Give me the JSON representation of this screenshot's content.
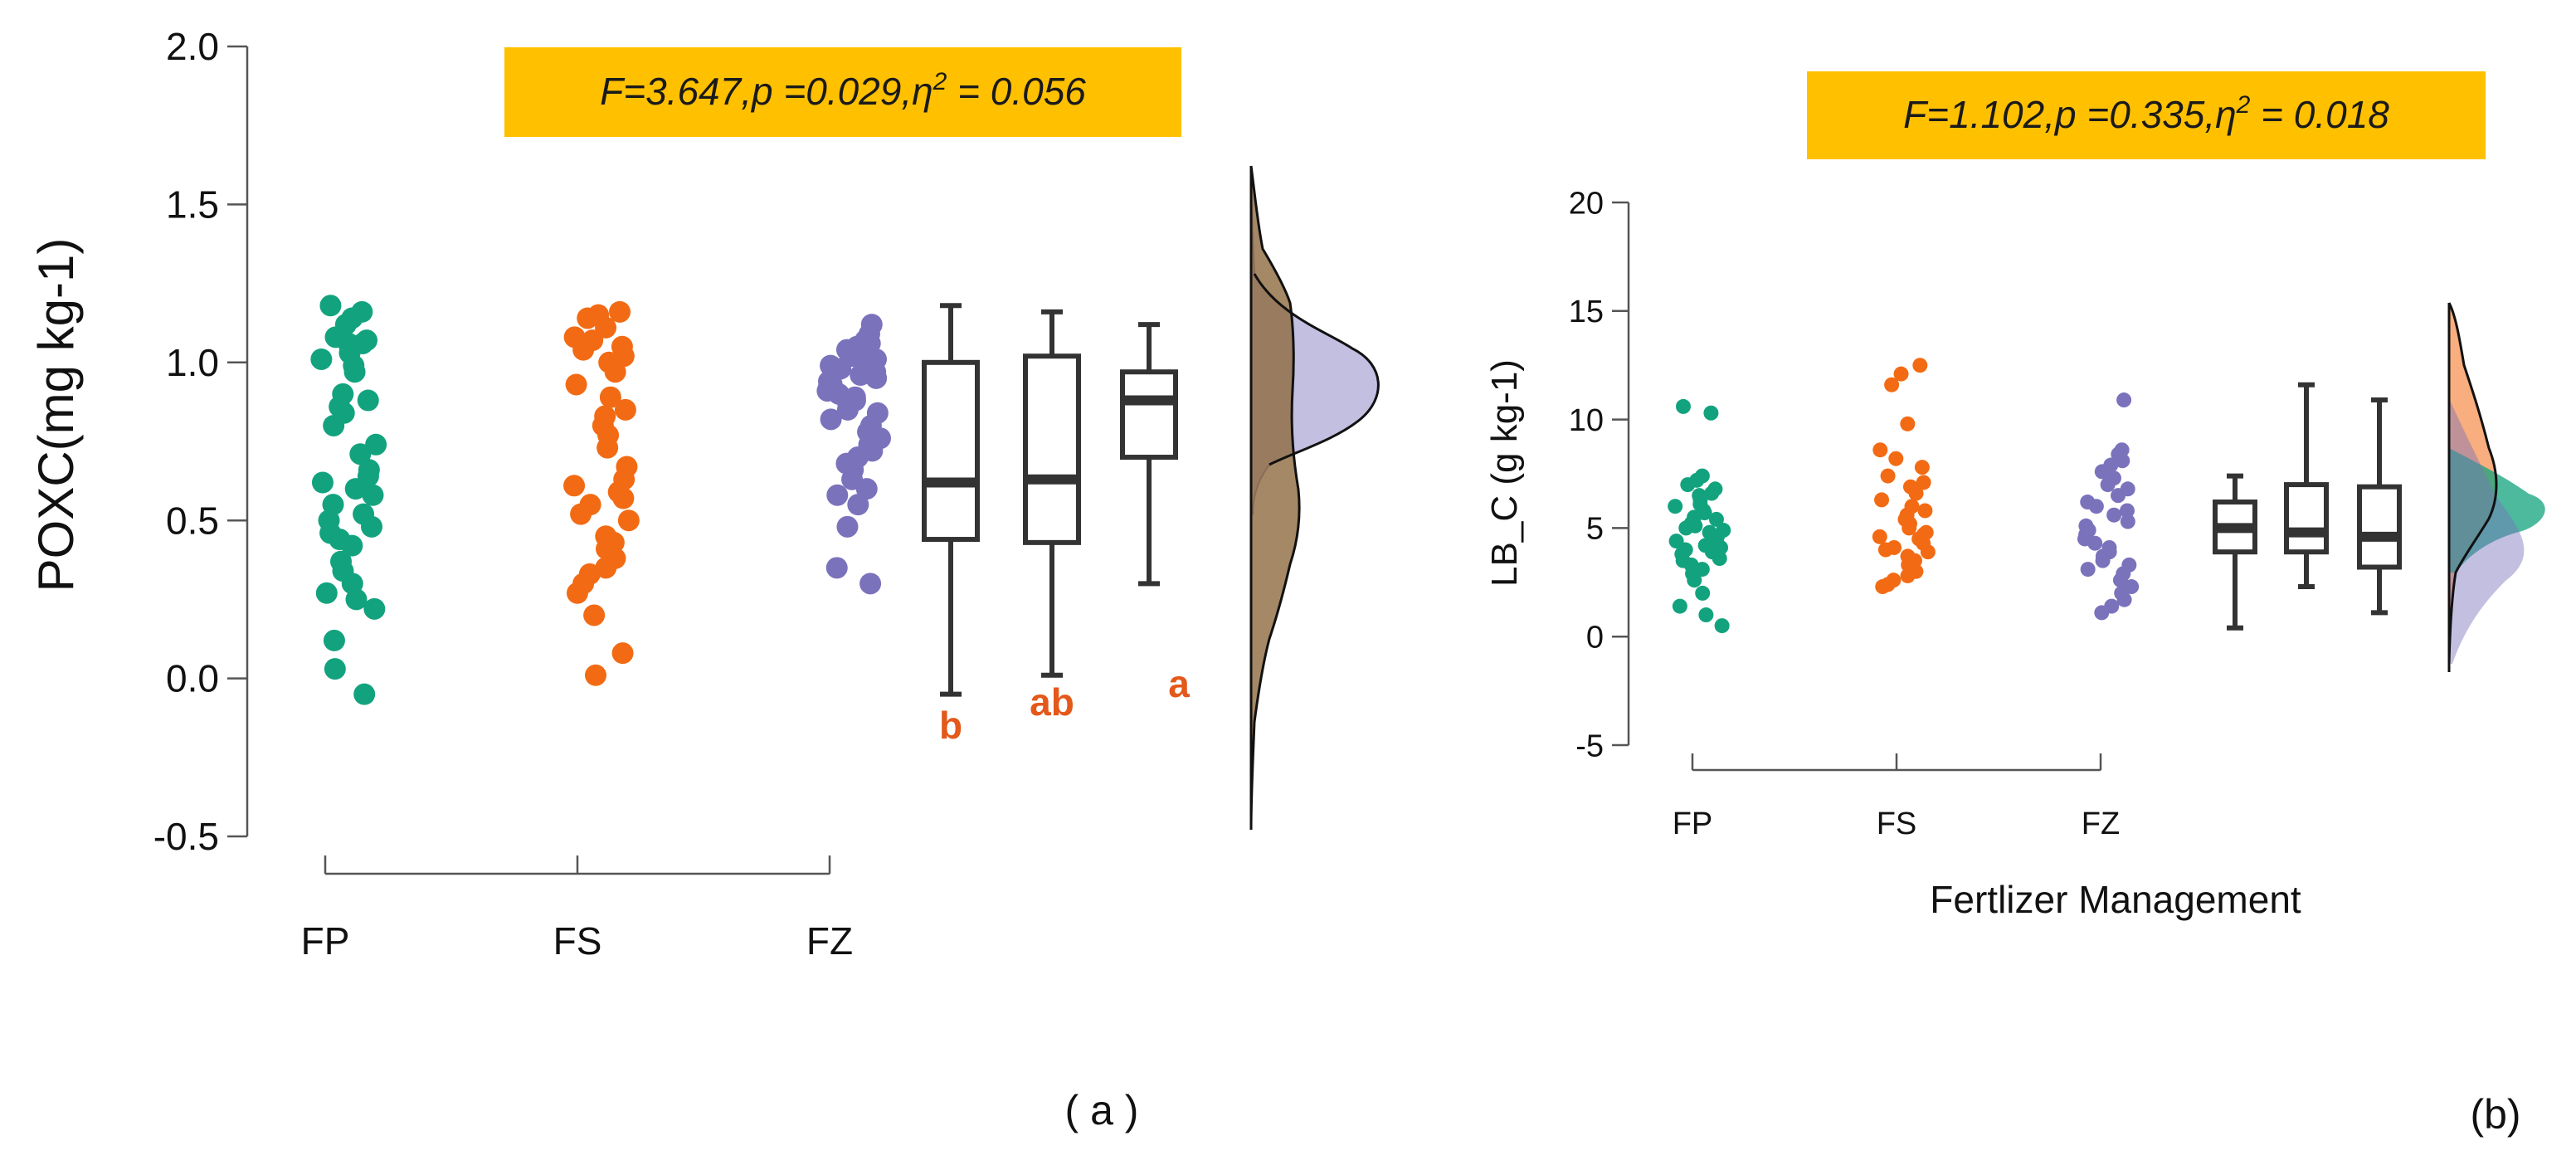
{
  "colors": {
    "FP": "#12A37E",
    "FS": "#F26B14",
    "FZ": "#7B72BC",
    "stat_bg": "#FFC000",
    "letters": "#E4581A"
  },
  "chart_data": [
    {
      "panel_label": "( a )",
      "type": "raincloud",
      "ylabel": "POXC(mg kg-1)",
      "xlabel": "",
      "ylim": [
        -0.5,
        2.0
      ],
      "yticks": [
        -0.5,
        0.0,
        0.5,
        1.0,
        1.5,
        2.0
      ],
      "ytick_labels": [
        "-0.5",
        "0.0",
        "0.5",
        "1.0",
        "1.5",
        "2.0"
      ],
      "categories": [
        "FP",
        "FS",
        "FZ"
      ],
      "stat_text": "F=3.647,p =0.029,η² = 0.056",
      "stat_parts": {
        "main": "F=3.647,p =0.029,η",
        "sup": "2",
        "tail": " = 0.056"
      },
      "series": [
        {
          "name": "FP",
          "box": {
            "min": -0.05,
            "q1": 0.44,
            "median": 0.62,
            "q3": 1.0,
            "max": 1.18
          },
          "letter": "b",
          "points": [
            1.18,
            1.16,
            1.14,
            1.12,
            1.08,
            1.07,
            1.06,
            1.06,
            1.05,
            1.03,
            1.01,
            0.99,
            0.97,
            0.9,
            0.88,
            0.86,
            0.84,
            0.8,
            0.74,
            0.71,
            0.66,
            0.64,
            0.62,
            0.6,
            0.58,
            0.55,
            0.52,
            0.5,
            0.48,
            0.46,
            0.44,
            0.42,
            0.37,
            0.34,
            0.3,
            0.27,
            0.25,
            0.22,
            0.12,
            0.03,
            -0.05
          ]
        },
        {
          "name": "FS",
          "box": {
            "min": 0.01,
            "q1": 0.43,
            "median": 0.63,
            "q3": 1.02,
            "max": 1.16
          },
          "letter": "ab",
          "points": [
            1.16,
            1.15,
            1.14,
            1.11,
            1.08,
            1.07,
            1.05,
            1.04,
            1.02,
            1.0,
            0.97,
            0.93,
            0.89,
            0.85,
            0.83,
            0.8,
            0.77,
            0.73,
            0.67,
            0.63,
            0.61,
            0.59,
            0.57,
            0.55,
            0.52,
            0.5,
            0.45,
            0.43,
            0.41,
            0.38,
            0.35,
            0.33,
            0.3,
            0.27,
            0.2,
            0.08,
            0.01
          ]
        },
        {
          "name": "FZ",
          "box": {
            "min": 0.3,
            "q1": 0.7,
            "median": 0.88,
            "q3": 0.97,
            "max": 1.12
          },
          "letter": "a",
          "points": [
            1.12,
            1.09,
            1.07,
            1.06,
            1.05,
            1.04,
            1.03,
            1.02,
            1.01,
            1.0,
            0.99,
            0.98,
            0.97,
            0.96,
            0.95,
            0.94,
            0.93,
            0.92,
            0.91,
            0.9,
            0.89,
            0.88,
            0.87,
            0.85,
            0.84,
            0.82,
            0.8,
            0.78,
            0.76,
            0.74,
            0.72,
            0.7,
            0.68,
            0.66,
            0.63,
            0.6,
            0.58,
            0.55,
            0.48,
            0.35,
            0.3
          ]
        }
      ]
    },
    {
      "panel_label": "(b)",
      "type": "raincloud",
      "ylabel": "LB_C (g kg-1)",
      "xlabel": "Fertlizer Management",
      "ylim": [
        -5,
        20
      ],
      "yticks": [
        -5,
        0,
        5,
        10,
        15,
        20
      ],
      "ytick_labels": [
        "-5",
        "0",
        "5",
        "10",
        "15",
        "20"
      ],
      "categories": [
        "FP",
        "FS",
        "FZ"
      ],
      "stat_text": "F=1.102,p =0.335,η² = 0.018",
      "stat_parts": {
        "main": "F=1.102,p =0.335,η",
        "sup": "2",
        "tail": " = 0.018"
      },
      "series": [
        {
          "name": "FP",
          "box": {
            "min": 0.4,
            "q1": 3.9,
            "median": 5.0,
            "q3": 6.2,
            "max": 7.4
          },
          "letter": "",
          "points": [
            10.6,
            10.3,
            7.4,
            7.2,
            7.0,
            6.8,
            6.6,
            6.5,
            6.3,
            6.1,
            6.0,
            5.8,
            5.7,
            5.5,
            5.4,
            5.2,
            5.1,
            5.0,
            4.9,
            4.8,
            4.6,
            4.5,
            4.4,
            4.2,
            4.1,
            4.0,
            3.9,
            3.8,
            3.6,
            3.5,
            3.3,
            3.1,
            2.9,
            2.6,
            2.0,
            1.4,
            1.0,
            0.5
          ]
        },
        {
          "name": "FS",
          "box": {
            "min": 2.3,
            "q1": 3.9,
            "median": 4.8,
            "q3": 7.0,
            "max": 11.6
          },
          "letter": "",
          "points": [
            12.5,
            12.1,
            11.6,
            9.8,
            8.6,
            8.2,
            7.8,
            7.4,
            7.1,
            6.9,
            6.6,
            6.3,
            6.0,
            5.8,
            5.6,
            5.4,
            5.2,
            5.0,
            4.8,
            4.7,
            4.6,
            4.5,
            4.3,
            4.1,
            4.0,
            3.9,
            3.7,
            3.5,
            3.3,
            3.0,
            2.8,
            2.6,
            2.4,
            2.3
          ]
        },
        {
          "name": "FZ",
          "box": {
            "min": 1.1,
            "q1": 3.2,
            "median": 4.6,
            "q3": 6.9,
            "max": 10.9
          },
          "letter": "",
          "points": [
            10.9,
            8.6,
            8.4,
            8.1,
            7.9,
            7.6,
            7.3,
            7.0,
            6.8,
            6.5,
            6.2,
            6.0,
            5.8,
            5.6,
            5.3,
            5.1,
            4.9,
            4.7,
            4.5,
            4.3,
            4.1,
            3.9,
            3.7,
            3.5,
            3.3,
            3.1,
            2.9,
            2.6,
            2.3,
            2.0,
            1.7,
            1.4,
            1.1
          ]
        }
      ]
    }
  ]
}
